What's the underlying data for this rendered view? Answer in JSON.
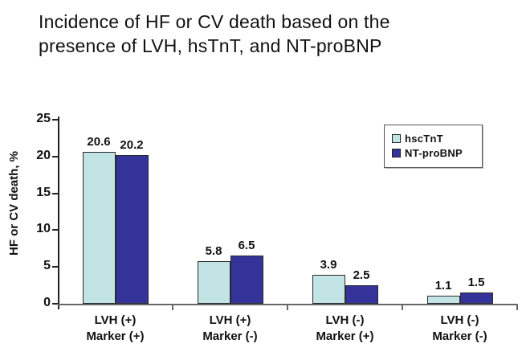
{
  "title": {
    "line1": "Incidence of HF or CV death based on the",
    "line2": "presence of LVH, hsTnT, and NT-proBNP"
  },
  "y_axis": {
    "label": "HF or CV death, %"
  },
  "chart_data": {
    "type": "bar",
    "title": "Incidence of HF or CV death based on the presence of LVH, hsTnT, and NT-proBNP",
    "xlabel": "",
    "ylabel": "HF or CV death, %",
    "ylim": [
      0,
      25
    ],
    "yticks": [
      0,
      5,
      10,
      15,
      20,
      25
    ],
    "grid": false,
    "legend_position": "top-right",
    "value_labels": true,
    "categories": [
      "LVH (+)\nMarker (+)",
      "LVH (+)\nMarker (-)",
      "LVH (-)\nMarker (+)",
      "LVH (-)\nMarker (-)"
    ],
    "series": [
      {
        "name": "hscTnT",
        "color": "#c2e4e4",
        "values": [
          20.6,
          5.8,
          3.9,
          1.1
        ]
      },
      {
        "name": "NT-proBNP",
        "color": "#333399",
        "values": [
          20.2,
          6.5,
          2.5,
          1.5
        ]
      }
    ]
  }
}
